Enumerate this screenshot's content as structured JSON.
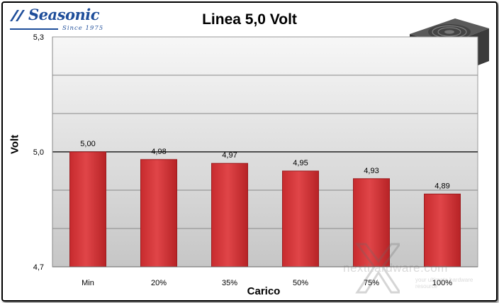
{
  "logo": {
    "brand": "Seasonic",
    "tagline": "Since 1975"
  },
  "chart_data": {
    "type": "bar",
    "title": "Linea 5,0 Volt",
    "xlabel": "Carico",
    "ylabel": "Volt",
    "categories": [
      "Min",
      "20%",
      "35%",
      "50%",
      "75%",
      "100%"
    ],
    "values": [
      5.0,
      4.98,
      4.97,
      4.95,
      4.93,
      4.89
    ],
    "value_labels": [
      "5,00",
      "4,98",
      "4,97",
      "4,95",
      "4,93",
      "4,89"
    ],
    "ylim": [
      4.7,
      5.3
    ],
    "yticks": [
      4.7,
      5.0,
      5.3
    ],
    "ytick_labels": [
      "4,7",
      "5,0",
      "5,3"
    ],
    "minor_gridlines": [
      4.8,
      4.9,
      5.1,
      5.2
    ],
    "grid": true,
    "legend": "none",
    "colors": {
      "bar": "#d63a3d",
      "bar_dark": "#9c1c1f",
      "plot_bg_top": "#f7f7f7",
      "plot_bg_bottom": "#c6c6c6"
    }
  },
  "watermark": {
    "text": "nexthardware.com",
    "subtext": "your ultimate hardware resource"
  }
}
